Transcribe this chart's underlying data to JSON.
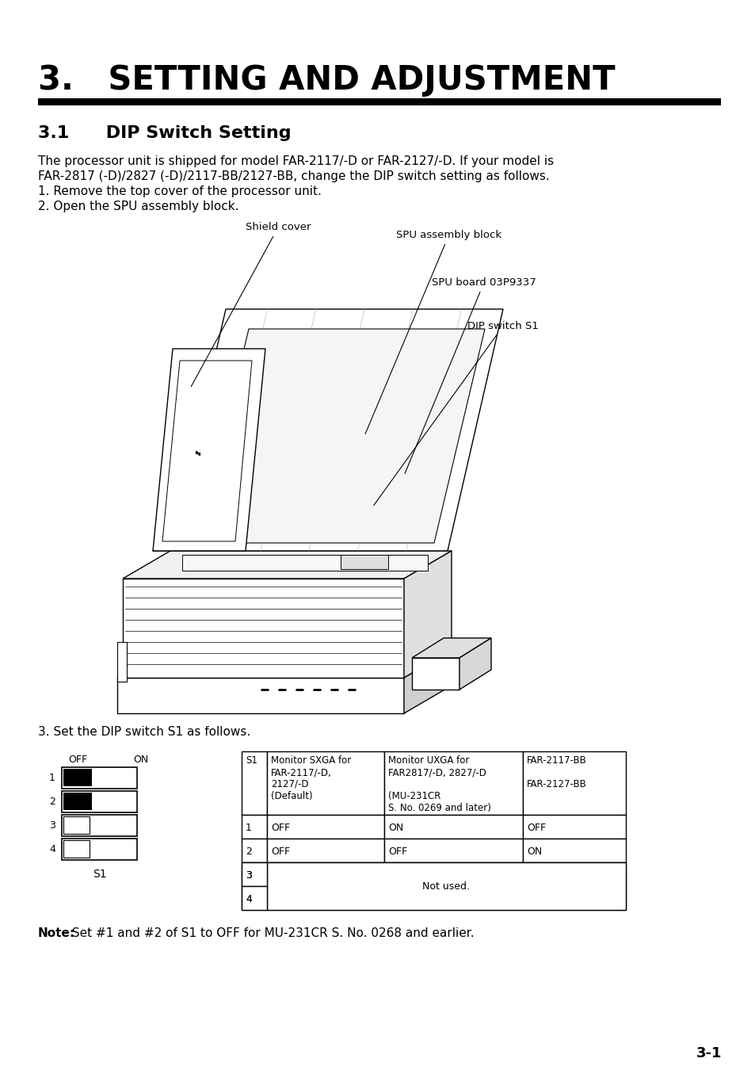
{
  "title": "3.   SETTING AND ADJUSTMENT",
  "section_title": "3.1      DIP Switch Setting",
  "body_text_line1": "The processor unit is shipped for model FAR-2117/-D or FAR-2127/-D. If your model is",
  "body_text_line2": "FAR-2817 (-D)/2827 (-D)/2117-BB/2127-BB, change the DIP switch setting as follows.",
  "body_text_line3": "1. Remove the top cover of the processor unit.",
  "body_text_line4": "2. Open the SPU assembly block.",
  "step3_text": "3. Set the DIP switch S1 as follows.",
  "note_bold": "Note:",
  "note_rest": " Set #1 and #2 of S1 to OFF for MU-231CR S. No. 0268 and earlier.",
  "page_number": "3-1",
  "diagram_labels": {
    "shield_cover": "Shield cover",
    "spu_assembly": "SPU assembly block",
    "spu_board": "SPU board 03P9337",
    "dip_switch": "DIP switch S1"
  },
  "table_header_col0": "S1",
  "table_header_col1": "Monitor SXGA for\nFAR-2117/-D,\n2127/-D\n(Default)",
  "table_header_col2": "Monitor UXGA for\nFAR2817/-D, 2827/-D\n\n(MU-231CR\nS. No. 0269 and later)",
  "table_header_col3": "FAR-2117-BB\n\nFAR-2127-BB",
  "table_rows": [
    [
      "1",
      "OFF",
      "ON",
      "OFF"
    ],
    [
      "2",
      "OFF",
      "OFF",
      "ON"
    ],
    [
      "3",
      "",
      "",
      ""
    ],
    [
      "4",
      "",
      "",
      ""
    ]
  ],
  "not_used_text": "Not used.",
  "dip_rows": [
    {
      "num": "1",
      "filled": true
    },
    {
      "num": "2",
      "filled": true
    },
    {
      "num": "3",
      "filled": false
    },
    {
      "num": "4",
      "filled": false
    }
  ],
  "background_color": "#ffffff",
  "text_color": "#000000",
  "line_color": "#000000"
}
